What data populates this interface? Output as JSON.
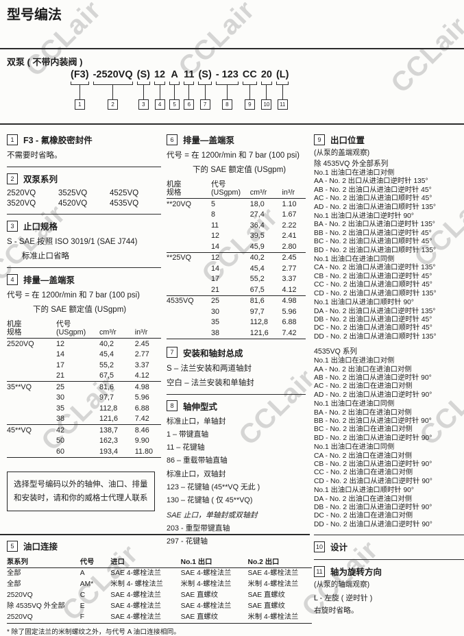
{
  "watermark": {
    "text": "CCLair"
  },
  "header": {
    "title": "型号编法",
    "subtitle": "双泵 ( 不带内装阀 )"
  },
  "model_code": {
    "segments": [
      {
        "label": "(F3)",
        "num": "1"
      },
      {
        "label": "-2520VQ",
        "num": "2"
      },
      {
        "label": "(S)",
        "num": "3"
      },
      {
        "label": "12",
        "num": "4"
      },
      {
        "label": "A",
        "num": "5"
      },
      {
        "label": "11",
        "num": "6"
      },
      {
        "label": "(S)",
        "num": "7"
      },
      {
        "label": "- 123",
        "num": "8"
      },
      {
        "label": "CC",
        "num": "9"
      },
      {
        "label": "20",
        "num": "10"
      },
      {
        "label": "(L)",
        "num": "11"
      }
    ]
  },
  "s1": {
    "num": "1",
    "title": "F3 - 氟橡胶密封件",
    "body": "不需要时省略。"
  },
  "s2": {
    "num": "2",
    "title": "双泵系列",
    "rows": [
      [
        "2520VQ",
        "3525VQ",
        "4525VQ"
      ],
      [
        "3520VQ",
        "4520VQ",
        "4535VQ"
      ]
    ]
  },
  "s3": {
    "num": "3",
    "title": "止口规格",
    "line1": "S -  SAE 按照 ISO 3019/1 (SAE J744)",
    "line2": "标准止口省略"
  },
  "s4": {
    "num": "4",
    "title": "排量—盖端泵",
    "desc1": "代号 =  在 1200r/min 和 7 bar (100 psi)",
    "desc2": "下的 SAE 额定值 (USgpm)",
    "table": {
      "headers": [
        [
          "机座",
          "规格"
        ],
        [
          "代号",
          "(USgpm)"
        ],
        [
          "",
          "cm³/r"
        ],
        [
          "",
          "in³/r"
        ]
      ],
      "groups": [
        {
          "frame": "2520VQ",
          "rows": [
            [
              "12",
              "40,2",
              "2.45"
            ],
            [
              "14",
              "45,4",
              "2.77"
            ],
            [
              "17",
              "55,2",
              "3.37"
            ],
            [
              "21",
              "67,5",
              "4.12"
            ]
          ]
        },
        {
          "frame": "35**VQ",
          "rows": [
            [
              "25",
              "81,6",
              "4.98"
            ],
            [
              "30",
              "97,7",
              "5.96"
            ],
            [
              "35",
              "112,8",
              "6.88"
            ],
            [
              "38",
              "121,6",
              "7.42"
            ]
          ]
        },
        {
          "frame": "45**VQ",
          "rows": [
            [
              "42",
              "138,7",
              "8.46"
            ],
            [
              "50",
              "162,3",
              "9.90"
            ],
            [
              "60",
              "193,4",
              "11.80"
            ]
          ]
        }
      ]
    }
  },
  "note_box": {
    "text": "选择型号编码以外的轴伸、油口、排量和安装时，请和你的威格士代理人联系"
  },
  "s5": {
    "num": "5",
    "title": "油口连接",
    "headers": [
      "泵系列",
      "代号",
      "进口",
      "No.1 出口",
      "No.2 出口"
    ],
    "rows": [
      [
        "全部",
        "A",
        "SAE 4-螺栓法兰",
        "SAE 4-螺栓法兰",
        "SAE 4-螺栓法兰"
      ],
      [
        "全部",
        "AM*",
        "米制 4- 螺栓法兰",
        "米制 4-螺栓法兰",
        "米制 4-螺栓法兰"
      ],
      [
        "2520VQ",
        "C",
        "SAE 4-螺栓法兰",
        "SAE 直螺纹",
        "SAE 直螺纹"
      ],
      [
        "除 4535VQ 外全部",
        "E",
        "SAE 4-螺栓法兰",
        "SAE 4-螺栓法兰",
        "SAE 直螺纹"
      ],
      [
        "2520VQ",
        "F",
        "SAE 4-螺栓法兰",
        "SAE 直螺纹",
        "米制 4-螺栓法兰"
      ]
    ],
    "footnote": "* 除了固定法兰的米制螺纹之外，与代号 A 油口连接相同。"
  },
  "s6": {
    "num": "6",
    "title": "排量—盖端泵",
    "desc1": "代号 =  在 1200r/min 和 7 bar (100 psi)",
    "desc2": "下的 SAE 额定值 (USgpm)",
    "table": {
      "headers": [
        [
          "机座",
          "规格"
        ],
        [
          "代号",
          "(USgpm)"
        ],
        [
          "",
          "cm³/r"
        ],
        [
          "",
          "in³/r"
        ]
      ],
      "groups": [
        {
          "frame": "**20VQ",
          "rows": [
            [
              "5",
              "18,0",
              "1.10"
            ],
            [
              "8",
              "27,4",
              "1.67"
            ],
            [
              "11",
              "36,4",
              "2.22"
            ],
            [
              "12",
              "39,5",
              "2.41"
            ],
            [
              "14",
              "45,9",
              "2.80"
            ]
          ]
        },
        {
          "frame": "**25VQ",
          "rows": [
            [
              "12",
              "40,2",
              "2.45"
            ],
            [
              "14",
              "45,4",
              "2.77"
            ],
            [
              "17",
              "55,2",
              "3.37"
            ],
            [
              "21",
              "67,5",
              "4.12"
            ]
          ]
        },
        {
          "frame": "4535VQ",
          "rows": [
            [
              "25",
              "81,6",
              "4.98"
            ],
            [
              "30",
              "97,7",
              "5.96"
            ],
            [
              "35",
              "112,8",
              "6.88"
            ],
            [
              "38",
              "121,6",
              "7.42"
            ]
          ]
        }
      ]
    }
  },
  "s7": {
    "num": "7",
    "title": "安装和轴封总成",
    "lines": [
      "S – 法兰安装和两道轴封",
      "空白 – 法兰安装和单轴封"
    ]
  },
  "s8": {
    "num": "8",
    "title": "轴伸型式",
    "items": [
      {
        "style": "sub",
        "text": "标准止口，单轴封"
      },
      {
        "style": "item",
        "text": "1   –   带键直轴"
      },
      {
        "style": "item",
        "text": "11 –   花键轴"
      },
      {
        "style": "item",
        "text": "86 –   重载带轴直轴"
      },
      {
        "style": "sub",
        "text": "标准止口，双轴封"
      },
      {
        "style": "item",
        "text": "123 – 花键轴 (45**VQ 无此 )"
      },
      {
        "style": "item",
        "text": "130 – 花键轴 ( 仅 45**VQ)"
      },
      {
        "style": "sub-italic",
        "text": "SAE 止口，单轴封或双轴封"
      },
      {
        "style": "item",
        "text": "203 - 重型带键直轴"
      },
      {
        "style": "item",
        "text": "297 - 花键轴"
      }
    ]
  },
  "s9": {
    "num": "9",
    "title": "出口位置",
    "note": "(从泵的盖端观察)",
    "group1_title": "除 4535VQ 外全部系列",
    "group1": [
      {
        "style": "sub",
        "text": "No.1 出油口在进油口对侧"
      },
      {
        "style": "item",
        "text": "AA - No. 2 出口从进油口逆时针 135°"
      },
      {
        "style": "item",
        "text": "AB - No. 2 出油口从进油口逆时针 45°"
      },
      {
        "style": "item",
        "text": "AC - No. 2 出油口从进油口顺时针 45°"
      },
      {
        "style": "item",
        "text": "AD - No. 2 出油口从进油口顺时针 135°"
      },
      {
        "style": "sub",
        "text": "No.1 出油口从进油口逆时针 90°"
      },
      {
        "style": "item",
        "text": "BA - No. 2 出油口从进油口逆时针 135°"
      },
      {
        "style": "item",
        "text": "BB - No. 2 出油口从进油口逆时针 45°"
      },
      {
        "style": "item",
        "text": "BC - No. 2 出油口从进油口顺时针 45°"
      },
      {
        "style": "item",
        "text": "BD - No. 2 出油口从进油口顺时针 135°"
      },
      {
        "style": "sub",
        "text": "No.1 出油口在进油口同侧"
      },
      {
        "style": "item",
        "text": "CA - No. 2 出油口从进油口逆时针 135°"
      },
      {
        "style": "item",
        "text": "CB - No. 2 出油口从进油口逆时针 45°"
      },
      {
        "style": "item",
        "text": "CC - No. 2 出油口从进油口顺时针 45°"
      },
      {
        "style": "item",
        "text": "CD - No. 2 出油口从进油口顺时针 135°"
      },
      {
        "style": "sub",
        "text": "No.1 出油口从进油口顺时针 90°"
      },
      {
        "style": "item",
        "text": "DA - No. 2 出油口从进油口逆时针 135°"
      },
      {
        "style": "item",
        "text": "DB - No. 2 出油口从进油口逆时针 45°"
      },
      {
        "style": "item",
        "text": "DC - No. 2 出油口从进油口顺时针 45°"
      },
      {
        "style": "item",
        "text": "DD - No. 2 出油口从进油口顺时针 135°"
      }
    ],
    "group2_title": "4535VQ 系列",
    "group2": [
      {
        "style": "sub",
        "text": "No.1 出油口在进油口对侧"
      },
      {
        "style": "item",
        "text": "AA - No. 2 出油口在进油口对侧"
      },
      {
        "style": "item",
        "text": "AB - No. 2 出油口从进油口逆时针 90°"
      },
      {
        "style": "item",
        "text": "AC - No. 2 出油口在进油口对侧"
      },
      {
        "style": "item",
        "text": "AD - No. 2 出油口从进油口逆时针 90°"
      },
      {
        "style": "sub",
        "text": "No.1 出油口在进油口同侧"
      },
      {
        "style": "item",
        "text": "BA - No. 2 出油口在进油口对侧"
      },
      {
        "style": "item",
        "text": "BB - No. 2 出油口从进油口逆时针 90°"
      },
      {
        "style": "item",
        "text": "BC - No. 2 出油口在进油口对侧"
      },
      {
        "style": "item",
        "text": "BD - No. 2 出油口从进油口逆时针 90°"
      },
      {
        "style": "sub",
        "text": "No.1 出油口在进油口同侧"
      },
      {
        "style": "item",
        "text": "CA - No. 2 出油口在进油口对侧"
      },
      {
        "style": "item",
        "text": "CB - No. 2 出油口从进油口逆时针 90°"
      },
      {
        "style": "item",
        "text": "CC - No. 2 出油口在进油口对侧"
      },
      {
        "style": "item",
        "text": "CD - No. 2 出油口从进油口逆时针 90°"
      },
      {
        "style": "sub",
        "text": "No.1 出油口从进油口顺时针 90°"
      },
      {
        "style": "item",
        "text": "DA - No. 2 出油口在进油口对侧"
      },
      {
        "style": "item",
        "text": "DB - No. 2 出油口从进油口逆时针 90°"
      },
      {
        "style": "item",
        "text": "DC - No. 2 出油口在进油口对侧"
      },
      {
        "style": "item",
        "text": "DD - No. 2 出油口从进油口逆时针 90°"
      }
    ]
  },
  "s10": {
    "num": "10",
    "title": "设计"
  },
  "s11": {
    "num": "11",
    "title": "轴为旋转方向",
    "note": "(从泵的轴端观察)",
    "lines": [
      "L - 左旋 ( 逆时针 )",
      "右旋时省略。"
    ]
  }
}
